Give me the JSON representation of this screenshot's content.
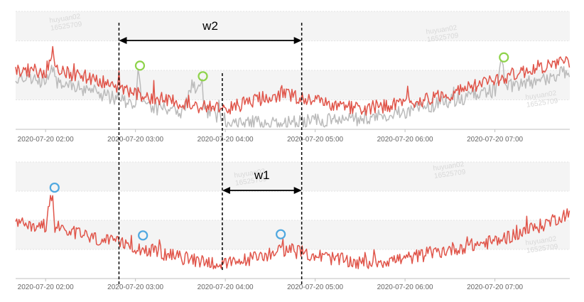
{
  "chart_data": [
    {
      "type": "line",
      "title": "",
      "xlabel": "",
      "ylabel": "",
      "grid": true,
      "x_range": [
        "2020-07-20 01:40",
        "2020-07-20 07:50"
      ],
      "x_ticks": [
        "2020-07-20 02:00",
        "2020-07-20 03:00",
        "2020-07-20 04:00",
        "2020-07-20 05:00",
        "2020-07-20 06:00",
        "2020-07-20 07:00"
      ],
      "ylim": [
        0,
        1
      ],
      "series": [
        {
          "color": "#e0554a",
          "points": [
            [
              "2020-07-20 01:40",
              0.5
            ],
            [
              "2020-07-20 02:00",
              0.49
            ],
            [
              "2020-07-20 02:05",
              0.67
            ],
            [
              "2020-07-20 02:06",
              0.49
            ],
            [
              "2020-07-20 02:30",
              0.44
            ],
            [
              "2020-07-20 03:00",
              0.3
            ],
            [
              "2020-07-20 03:30",
              0.22
            ],
            [
              "2020-07-20 04:00",
              0.17
            ],
            [
              "2020-07-20 04:20",
              0.25
            ],
            [
              "2020-07-20 04:40",
              0.3
            ],
            [
              "2020-07-20 05:00",
              0.24
            ],
            [
              "2020-07-20 05:30",
              0.17
            ],
            [
              "2020-07-20 06:00",
              0.22
            ],
            [
              "2020-07-20 06:30",
              0.3
            ],
            [
              "2020-07-20 07:00",
              0.42
            ],
            [
              "2020-07-20 07:30",
              0.53
            ],
            [
              "2020-07-20 07:50",
              0.58
            ]
          ]
        },
        {
          "color": "#bbbbbb",
          "points": [
            [
              "2020-07-20 01:40",
              0.43
            ],
            [
              "2020-07-20 02:00",
              0.41
            ],
            [
              "2020-07-20 02:05",
              0.55
            ],
            [
              "2020-07-20 02:06",
              0.4
            ],
            [
              "2020-07-20 02:30",
              0.33
            ],
            [
              "2020-07-20 03:00",
              0.21
            ],
            [
              "2020-07-20 03:02",
              0.53
            ],
            [
              "2020-07-20 03:04",
              0.2
            ],
            [
              "2020-07-20 03:30",
              0.15
            ],
            [
              "2020-07-20 03:44",
              0.44
            ],
            [
              "2020-07-20 03:46",
              0.16
            ],
            [
              "2020-07-20 04:00",
              0.08
            ],
            [
              "2020-07-20 04:30",
              0.05
            ],
            [
              "2020-07-20 05:00",
              0.07
            ],
            [
              "2020-07-20 05:30",
              0.09
            ],
            [
              "2020-07-20 06:00",
              0.15
            ],
            [
              "2020-07-20 06:30",
              0.24
            ],
            [
              "2020-07-20 07:00",
              0.33
            ],
            [
              "2020-07-20 07:05",
              0.56
            ],
            [
              "2020-07-20 07:07",
              0.35
            ],
            [
              "2020-07-20 07:30",
              0.42
            ],
            [
              "2020-07-20 07:50",
              0.5
            ]
          ]
        }
      ],
      "highlighted_points": [
        {
          "x": "2020-07-20 03:03",
          "y": 0.54,
          "color": "#8ed34a"
        },
        {
          "x": "2020-07-20 03:45",
          "y": 0.45,
          "color": "#8ed34a"
        },
        {
          "x": "2020-07-20 07:06",
          "y": 0.61,
          "color": "#8ed34a"
        }
      ]
    },
    {
      "type": "line",
      "title": "",
      "xlabel": "",
      "ylabel": "",
      "grid": true,
      "x_range": [
        "2020-07-20 01:40",
        "2020-07-20 07:50"
      ],
      "x_ticks": [
        "2020-07-20 02:00",
        "2020-07-20 03:00",
        "2020-07-20 04:00",
        "2020-07-20 05:00",
        "2020-07-20 06:00",
        "2020-07-20 07:00"
      ],
      "ylim": [
        0,
        1
      ],
      "series": [
        {
          "color": "#e0554a",
          "points": [
            [
              "2020-07-20 01:40",
              0.47
            ],
            [
              "2020-07-20 02:00",
              0.45
            ],
            [
              "2020-07-20 02:05",
              0.76
            ],
            [
              "2020-07-20 02:06",
              0.45
            ],
            [
              "2020-07-20 02:30",
              0.35
            ],
            [
              "2020-07-20 03:00",
              0.27
            ],
            [
              "2020-07-20 03:30",
              0.18
            ],
            [
              "2020-07-20 04:00",
              0.12
            ],
            [
              "2020-07-20 04:20",
              0.18
            ],
            [
              "2020-07-20 04:40",
              0.25
            ],
            [
              "2020-07-20 05:00",
              0.2
            ],
            [
              "2020-07-20 05:30",
              0.13
            ],
            [
              "2020-07-20 06:00",
              0.17
            ],
            [
              "2020-07-20 06:30",
              0.25
            ],
            [
              "2020-07-20 07:00",
              0.32
            ],
            [
              "2020-07-20 07:30",
              0.45
            ],
            [
              "2020-07-20 07:50",
              0.57
            ]
          ]
        }
      ],
      "highlighted_points": [
        {
          "x": "2020-07-20 02:06",
          "y": 0.78,
          "color": "#4fa8e0"
        },
        {
          "x": "2020-07-20 03:05",
          "y": 0.37,
          "color": "#4fa8e0"
        },
        {
          "x": "2020-07-20 04:37",
          "y": 0.38,
          "color": "#4fa8e0"
        }
      ]
    }
  ],
  "annotations": {
    "w2": {
      "label": "w2",
      "from": "2020-07-20 02:49",
      "to": "2020-07-20 04:51"
    },
    "w1": {
      "label": "w1",
      "from": "2020-07-20 03:58",
      "to": "2020-07-20 04:51"
    }
  },
  "watermark": [
    "huyuan02",
    "16525709"
  ],
  "colors": {
    "red_series": "#e0554a",
    "gray_series": "#bbbbbb",
    "anomaly_top": "#8ed34a",
    "anomaly_bottom": "#4fa8e0",
    "band": "#f4f4f4"
  }
}
